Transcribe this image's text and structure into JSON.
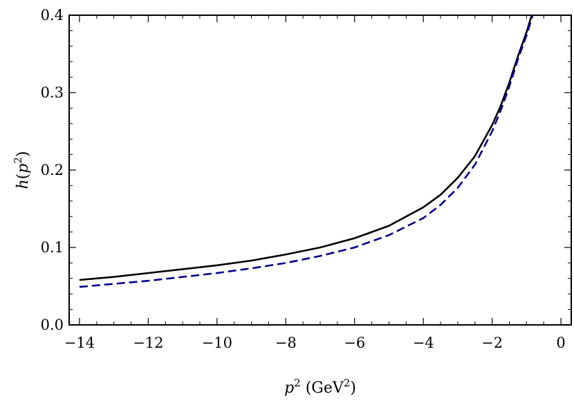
{
  "chart_data": {
    "type": "line",
    "title": "",
    "xlabel": {
      "var": "p",
      "sup": "2",
      "unit_open": "(GeV",
      "unit_sup": "2",
      "unit_close": ")"
    },
    "ylabel": {
      "fn": "h",
      "open": "(",
      "var": "p",
      "sup": "2",
      "close": ")"
    },
    "xlim": [
      -14.3,
      0.3
    ],
    "ylim": [
      0.0,
      0.4
    ],
    "x_ticks": [
      -14,
      -12,
      -10,
      -8,
      -6,
      -4,
      -2,
      0
    ],
    "x_tick_labels": [
      "−14",
      "−12",
      "−10",
      "−8",
      "−6",
      "−4",
      "−2",
      "0"
    ],
    "y_ticks": [
      0.0,
      0.1,
      0.2,
      0.3,
      0.4
    ],
    "y_tick_labels": [
      "0.0",
      "0.1",
      "0.2",
      "0.3",
      "0.4"
    ],
    "grid": false,
    "series": [
      {
        "style": "solid",
        "color": "#000000",
        "x": [
          -14,
          -13,
          -12,
          -11,
          -10,
          -9,
          -8,
          -7,
          -6,
          -5,
          -4,
          -3.5,
          -3,
          -2.5,
          -2,
          -1.75,
          -1.5,
          -1.25,
          -1.0,
          -0.85
        ],
        "y": [
          0.058,
          0.062,
          0.067,
          0.072,
          0.077,
          0.083,
          0.091,
          0.1,
          0.112,
          0.128,
          0.152,
          0.168,
          0.19,
          0.218,
          0.258,
          0.283,
          0.313,
          0.347,
          0.378,
          0.4
        ]
      },
      {
        "style": "dashed",
        "color": "#00008b",
        "x": [
          -14,
          -13,
          -12,
          -11,
          -10,
          -9,
          -8,
          -7,
          -6,
          -5,
          -4,
          -3.5,
          -3,
          -2.5,
          -2,
          -1.75,
          -1.5,
          -1.25,
          -1.0,
          -0.82
        ],
        "y": [
          0.049,
          0.053,
          0.057,
          0.062,
          0.067,
          0.073,
          0.08,
          0.089,
          0.1,
          0.116,
          0.138,
          0.155,
          0.177,
          0.207,
          0.25,
          0.277,
          0.308,
          0.343,
          0.374,
          0.4
        ]
      }
    ]
  }
}
